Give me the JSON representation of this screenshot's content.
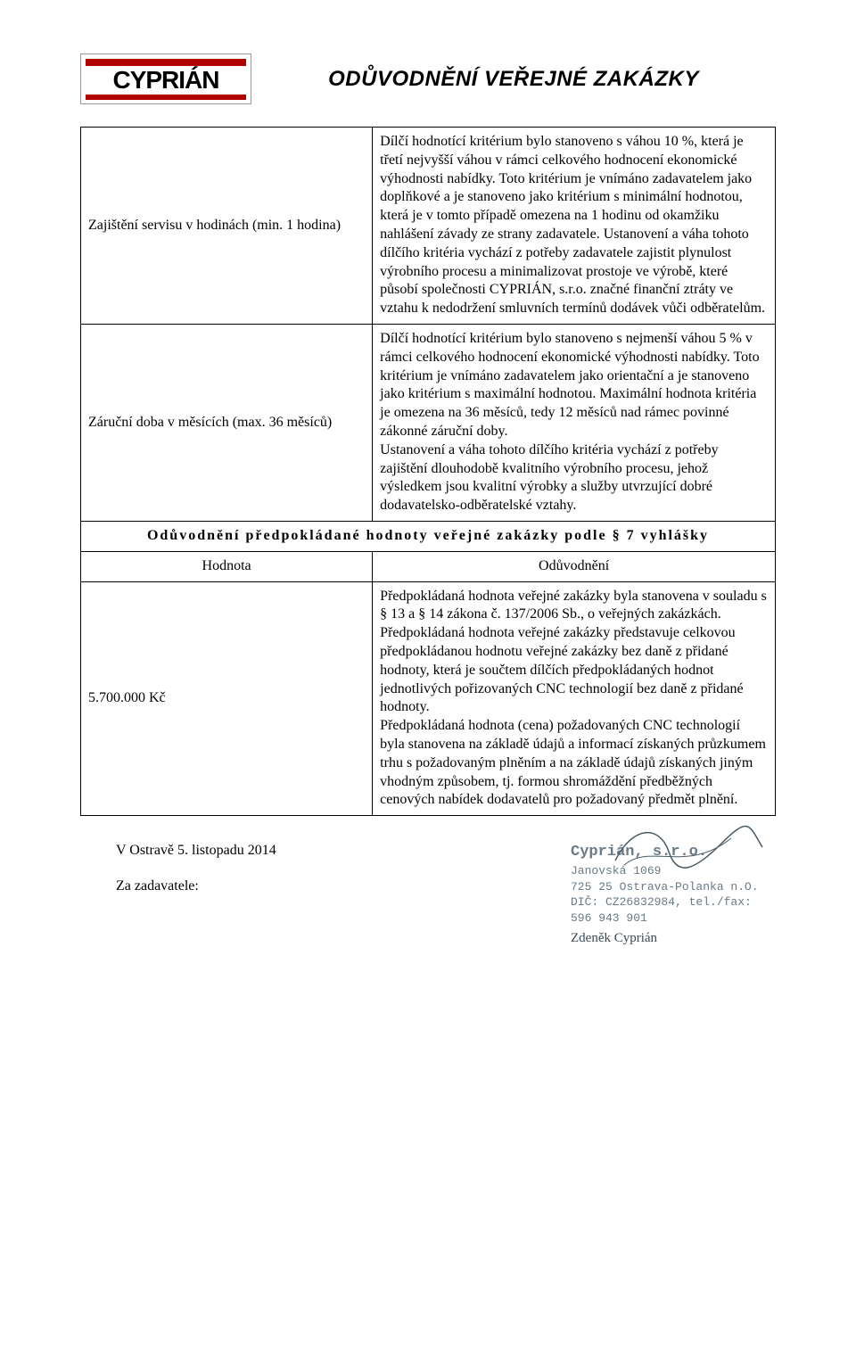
{
  "header": {
    "logo_text": "CYPRIÁN",
    "title": "ODŮVODNĚNÍ VEŘEJNÉ ZAKÁZKY"
  },
  "rows": [
    {
      "left": "Zajištění servisu v hodinách (min. 1 hodina)",
      "right": "Dílčí hodnotící kritérium bylo stanoveno s váhou 10 %, která je třetí nejvyšší váhou v rámci celkového hodnocení ekonomické výhodnosti nabídky. Toto kritérium je vnímáno zadavatelem jako doplňkové a je stanoveno jako kritérium s minimální hodnotou, která je v tomto případě omezena na 1 hodinu od okamžiku nahlášení závady ze strany zadavatele. Ustanovení a váha tohoto dílčího kritéria vychází z potřeby zadavatele zajistit plynulost výrobního procesu a minimalizovat prostoje ve výrobě, které působí společnosti CYPRIÁN, s.r.o. značné finanční ztráty ve vztahu k nedodržení smluvních termínů dodávek vůči odběratelům."
    },
    {
      "left": "Záruční doba v měsících (max. 36 měsíců)",
      "right": "Dílčí hodnotící kritérium bylo stanoveno s nejmenší váhou 5 % v rámci celkového hodnocení ekonomické výhodnosti nabídky. Toto kritérium je vnímáno zadavatelem jako orientační a je stanoveno jako kritérium s maximální hodnotou. Maximální hodnota kritéria je omezena na 36 měsíců, tedy 12 měsíců nad rámec povinné zákonné záruční doby.\nUstanovení a váha tohoto dílčího kritéria vychází z potřeby zajištění dlouhodobě kvalitního výrobního procesu, jehož výsledkem jsou kvalitní výrobky a služby utvrzující dobré dodavatelsko-odběratelské vztahy."
    }
  ],
  "section_header": "Odůvodnění předpokládané hodnoty veřejné zakázky podle § 7 vyhlášky",
  "sub": {
    "left": "Hodnota",
    "right": "Odůvodnění"
  },
  "value_row": {
    "left": "5.700.000 Kč",
    "right": "Předpokládaná hodnota veřejné zakázky byla stanovena v souladu s § 13 a § 14 zákona č. 137/2006 Sb., o veřejných zakázkách. Předpokládaná hodnota veřejné zakázky představuje celkovou předpokládanou hodnotu veřejné zakázky bez daně z přidané hodnoty, která je součtem dílčích předpokládaných hodnot jednotlivých pořizovaných CNC technologií bez daně z přidané hodnoty.\nPředpokládaná hodnota (cena) požadovaných CNC technologií byla stanovena na základě údajů a informací získaných průzkumem trhu s požadovaným plněním a na základě údajů získaných jiným vhodným způsobem, tj. formou shromáždění předběžných cenových nabídek dodavatelů pro požadovaný předmět plnění."
  },
  "footer": {
    "place_date": "V Ostravě 5. listopadu 2014",
    "for": "Za zadavatele:",
    "stamp": {
      "company": "Cyprián, s.r.o.",
      "line1": "Janovská 1069",
      "line2": "725 25 Ostrava-Polanka n.O.",
      "line3": "DIČ: CZ26832984, tel./fax: 596 943 901",
      "signature": "Zdeněk Cyprián"
    }
  },
  "colors": {
    "logo_red": "#b00000",
    "stamp_text": "#6a7a88"
  }
}
